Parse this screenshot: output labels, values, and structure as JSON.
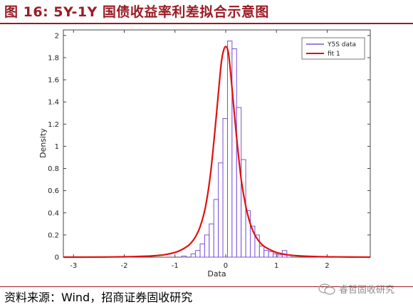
{
  "header": {
    "title": "图 16: 5Y-1Y 国债收益率利差拟合示意图"
  },
  "footer": {
    "source": "资料来源：Wind，招商证券固收研究",
    "watermark": "睿哲固收研究"
  },
  "chart_data": {
    "type": "bar",
    "xlabel": "Data",
    "ylabel": "Density",
    "xlim": [
      -3.2,
      2.85
    ],
    "ylim": [
      0,
      2.05
    ],
    "xticks": [
      -3,
      -2,
      -1,
      0,
      1,
      2
    ],
    "yticks": [
      0,
      0.2,
      0.4,
      0.6,
      0.8,
      1,
      1.2,
      1.4,
      1.6,
      1.8,
      2
    ],
    "legend_position": "top-right",
    "colors": {
      "histogram": "#7b52d8",
      "fit": "#e01010"
    },
    "histogram": {
      "name": "Y5S data",
      "bin_width": 0.09,
      "bin_edges_start": -0.865,
      "densities": [
        0.01,
        0.0,
        0.03,
        0.06,
        0.12,
        0.2,
        0.3,
        0.52,
        0.85,
        1.25,
        1.95,
        1.88,
        1.35,
        0.88,
        0.42,
        0.28,
        0.2,
        0.1,
        0.06,
        0.05,
        0.03,
        0.02,
        0.06,
        0.02
      ]
    },
    "fit": {
      "name": "fit 1",
      "x": [
        -3.2,
        -2.8,
        -2.4,
        -2.0,
        -1.6,
        -1.4,
        -1.2,
        -1.0,
        -0.9,
        -0.8,
        -0.7,
        -0.6,
        -0.5,
        -0.4,
        -0.3,
        -0.2,
        -0.1,
        -0.05,
        0.0,
        0.05,
        0.1,
        0.2,
        0.3,
        0.4,
        0.5,
        0.6,
        0.7,
        0.8,
        1.0,
        1.2,
        1.4,
        1.8,
        2.2,
        2.85
      ],
      "y": [
        0.0,
        0.0,
        0.001,
        0.003,
        0.008,
        0.013,
        0.022,
        0.042,
        0.06,
        0.085,
        0.12,
        0.18,
        0.28,
        0.45,
        0.75,
        1.2,
        1.7,
        1.85,
        1.9,
        1.85,
        1.65,
        1.15,
        0.72,
        0.45,
        0.28,
        0.18,
        0.12,
        0.085,
        0.042,
        0.022,
        0.013,
        0.005,
        0.002,
        0.0
      ]
    }
  }
}
